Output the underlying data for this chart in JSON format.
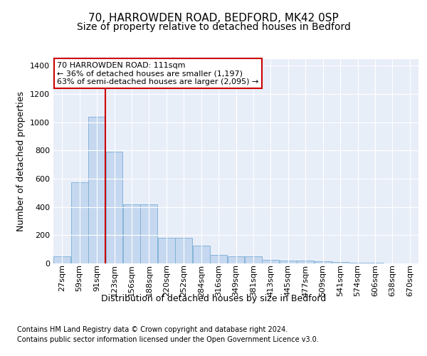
{
  "title": "70, HARROWDEN ROAD, BEDFORD, MK42 0SP",
  "subtitle": "Size of property relative to detached houses in Bedford",
  "xlabel": "Distribution of detached houses by size in Bedford",
  "ylabel": "Number of detached properties",
  "footnote1": "Contains HM Land Registry data © Crown copyright and database right 2024.",
  "footnote2": "Contains public sector information licensed under the Open Government Licence v3.0.",
  "categories": [
    "27sqm",
    "59sqm",
    "91sqm",
    "123sqm",
    "156sqm",
    "188sqm",
    "220sqm",
    "252sqm",
    "284sqm",
    "316sqm",
    "349sqm",
    "381sqm",
    "413sqm",
    "445sqm",
    "477sqm",
    "509sqm",
    "541sqm",
    "574sqm",
    "606sqm",
    "638sqm",
    "670sqm"
  ],
  "values": [
    48,
    575,
    1040,
    790,
    420,
    420,
    180,
    180,
    125,
    60,
    50,
    48,
    25,
    22,
    22,
    15,
    8,
    5,
    5,
    2,
    2
  ],
  "bar_color": "#c5d8f0",
  "bar_edge_color": "#7aadd4",
  "vline_color": "#cc0000",
  "annotation_line1": "70 HARROWDEN ROAD: 111sqm",
  "annotation_line2": "← 36% of detached houses are smaller (1,197)",
  "annotation_line3": "63% of semi-detached houses are larger (2,095) →",
  "annotation_box_color": "#cc0000",
  "ylim": [
    0,
    1450
  ],
  "yticks": [
    0,
    200,
    400,
    600,
    800,
    1000,
    1200,
    1400
  ],
  "fig_bg_color": "#ffffff",
  "plot_bg_color": "#e8eef8",
  "grid_color": "#ffffff",
  "title_fontsize": 11,
  "subtitle_fontsize": 10,
  "axis_label_fontsize": 9,
  "tick_fontsize": 8,
  "footnote_fontsize": 7
}
